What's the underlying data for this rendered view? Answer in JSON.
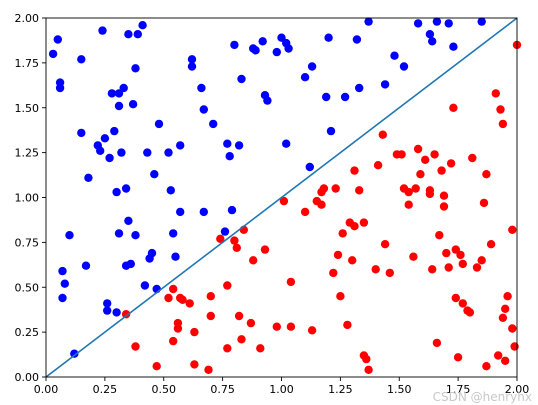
{
  "chart_data": {
    "type": "scatter",
    "title": "",
    "xlabel": "",
    "ylabel": "",
    "xlim": [
      0,
      2
    ],
    "ylim": [
      0,
      2
    ],
    "grid": false,
    "legend": "none",
    "x_ticks": [
      "0.00",
      "0.25",
      "0.50",
      "0.75",
      "1.00",
      "1.25",
      "1.50",
      "1.75",
      "2.00"
    ],
    "y_ticks": [
      "0.00",
      "0.25",
      "0.50",
      "0.75",
      "1.00",
      "1.25",
      "1.50",
      "1.75",
      "2.00"
    ],
    "line": {
      "x": [
        0,
        2
      ],
      "y": [
        0,
        2
      ],
      "color": "#1f77b4"
    },
    "series": [
      {
        "color": "#0000ff",
        "points": [
          [
            0.03,
            1.8
          ],
          [
            0.05,
            1.88
          ],
          [
            0.06,
            1.64
          ],
          [
            0.06,
            1.61
          ],
          [
            0.07,
            0.59
          ],
          [
            0.07,
            0.44
          ],
          [
            0.08,
            0.52
          ],
          [
            0.1,
            0.79
          ],
          [
            0.12,
            0.13
          ],
          [
            0.15,
            1.77
          ],
          [
            0.15,
            1.36
          ],
          [
            0.17,
            0.62
          ],
          [
            0.18,
            1.11
          ],
          [
            0.22,
            1.29
          ],
          [
            0.23,
            1.26
          ],
          [
            0.24,
            1.93
          ],
          [
            0.25,
            1.33
          ],
          [
            0.26,
            0.37
          ],
          [
            0.26,
            0.41
          ],
          [
            0.27,
            1.22
          ],
          [
            0.28,
            1.58
          ],
          [
            0.29,
            1.37
          ],
          [
            0.3,
            0.36
          ],
          [
            0.3,
            1.03
          ],
          [
            0.31,
            0.8
          ],
          [
            0.31,
            1.58
          ],
          [
            0.31,
            1.51
          ],
          [
            0.32,
            1.25
          ],
          [
            0.33,
            1.61
          ],
          [
            0.34,
            1.05
          ],
          [
            0.34,
            0.62
          ],
          [
            0.35,
            0.87
          ],
          [
            0.35,
            1.91
          ],
          [
            0.36,
            0.63
          ],
          [
            0.37,
            1.52
          ],
          [
            0.38,
            0.79
          ],
          [
            0.38,
            1.72
          ],
          [
            0.39,
            1.91
          ],
          [
            0.41,
            1.96
          ],
          [
            0.42,
            0.51
          ],
          [
            0.43,
            1.25
          ],
          [
            0.44,
            0.66
          ],
          [
            0.45,
            0.69
          ],
          [
            0.46,
            1.13
          ],
          [
            0.47,
            0.49
          ],
          [
            0.48,
            1.41
          ],
          [
            0.52,
            1.25
          ],
          [
            0.53,
            1.04
          ],
          [
            0.54,
            0.8
          ],
          [
            0.55,
            0.67
          ],
          [
            0.57,
            1.29
          ],
          [
            0.57,
            0.92
          ],
          [
            0.62,
            1.77
          ],
          [
            0.62,
            1.73
          ],
          [
            0.66,
            1.61
          ],
          [
            0.67,
            0.92
          ],
          [
            0.67,
            1.49
          ],
          [
            0.71,
            1.41
          ],
          [
            0.76,
            0.81
          ],
          [
            0.77,
            1.3
          ],
          [
            0.78,
            1.23
          ],
          [
            0.79,
            0.93
          ],
          [
            0.8,
            1.85
          ],
          [
            0.82,
            1.29
          ],
          [
            0.83,
            1.66
          ],
          [
            0.88,
            1.83
          ],
          [
            0.89,
            1.82
          ],
          [
            0.92,
            1.87
          ],
          [
            0.93,
            1.57
          ],
          [
            0.94,
            1.54
          ],
          [
            0.98,
            1.81
          ],
          [
            1.0,
            1.89
          ],
          [
            1.02,
            1.86
          ],
          [
            1.02,
            1.3
          ],
          [
            1.03,
            1.83
          ],
          [
            1.1,
            1.67
          ],
          [
            1.12,
            1.17
          ],
          [
            1.13,
            1.73
          ],
          [
            1.19,
            1.56
          ],
          [
            1.2,
            1.89
          ],
          [
            1.21,
            1.37
          ],
          [
            1.27,
            1.56
          ],
          [
            1.32,
            1.88
          ],
          [
            1.33,
            1.61
          ],
          [
            1.37,
            1.98
          ],
          [
            1.44,
            1.63
          ],
          [
            1.48,
            1.79
          ],
          [
            1.52,
            1.73
          ],
          [
            1.58,
            1.97
          ],
          [
            1.63,
            1.91
          ],
          [
            1.64,
            1.87
          ],
          [
            1.66,
            1.98
          ],
          [
            1.71,
            1.97
          ],
          [
            1.73,
            1.84
          ],
          [
            1.85,
            1.98
          ]
        ]
      },
      {
        "color": "#ff0000",
        "points": [
          [
            0.34,
            0.35
          ],
          [
            0.38,
            0.17
          ],
          [
            0.47,
            0.06
          ],
          [
            0.52,
            0.44
          ],
          [
            0.54,
            0.49
          ],
          [
            0.54,
            0.2
          ],
          [
            0.56,
            0.27
          ],
          [
            0.56,
            0.3
          ],
          [
            0.57,
            0.44
          ],
          [
            0.58,
            0.43
          ],
          [
            0.61,
            0.41
          ],
          [
            0.63,
            0.25
          ],
          [
            0.63,
            0.07
          ],
          [
            0.69,
            0.04
          ],
          [
            0.7,
            0.45
          ],
          [
            0.7,
            0.34
          ],
          [
            0.74,
            0.77
          ],
          [
            0.77,
            0.51
          ],
          [
            0.77,
            0.16
          ],
          [
            0.8,
            0.76
          ],
          [
            0.81,
            0.72
          ],
          [
            0.82,
            0.34
          ],
          [
            0.83,
            0.21
          ],
          [
            0.84,
            0.82
          ],
          [
            0.87,
            0.3
          ],
          [
            0.88,
            0.65
          ],
          [
            0.91,
            0.16
          ],
          [
            0.93,
            0.71
          ],
          [
            0.98,
            0.28
          ],
          [
            1.01,
            0.98
          ],
          [
            1.04,
            0.28
          ],
          [
            1.04,
            0.53
          ],
          [
            1.1,
            0.92
          ],
          [
            1.13,
            0.26
          ],
          [
            1.15,
            0.98
          ],
          [
            1.17,
            0.96
          ],
          [
            1.17,
            1.03
          ],
          [
            1.18,
            1.05
          ],
          [
            1.22,
            0.58
          ],
          [
            1.23,
            1.05
          ],
          [
            1.24,
            0.68
          ],
          [
            1.25,
            0.45
          ],
          [
            1.26,
            0.8
          ],
          [
            1.28,
            0.29
          ],
          [
            1.29,
            0.86
          ],
          [
            1.3,
            0.65
          ],
          [
            1.31,
            1.15
          ],
          [
            1.31,
            0.84
          ],
          [
            1.33,
            1.04
          ],
          [
            1.35,
            0.86
          ],
          [
            1.35,
            0.12
          ],
          [
            1.36,
            0.1
          ],
          [
            1.37,
            0.04
          ],
          [
            1.4,
            0.6
          ],
          [
            1.41,
            1.18
          ],
          [
            1.43,
            1.35
          ],
          [
            1.44,
            0.74
          ],
          [
            1.46,
            0.58
          ],
          [
            1.49,
            1.24
          ],
          [
            1.51,
            1.24
          ],
          [
            1.52,
            1.05
          ],
          [
            1.54,
            0.96
          ],
          [
            1.54,
            1.03
          ],
          [
            1.56,
            0.67
          ],
          [
            1.57,
            1.05
          ],
          [
            1.58,
            1.27
          ],
          [
            1.59,
            1.13
          ],
          [
            1.61,
            1.21
          ],
          [
            1.63,
            1.04
          ],
          [
            1.63,
            1.02
          ],
          [
            1.64,
            0.6
          ],
          [
            1.65,
            1.24
          ],
          [
            1.66,
            0.19
          ],
          [
            1.67,
            0.79
          ],
          [
            1.68,
            1.15
          ],
          [
            1.69,
            1.01
          ],
          [
            1.69,
            0.95
          ],
          [
            1.7,
            0.69
          ],
          [
            1.71,
            0.61
          ],
          [
            1.72,
            1.19
          ],
          [
            1.73,
            1.5
          ],
          [
            1.74,
            0.71
          ],
          [
            1.74,
            0.44
          ],
          [
            1.75,
            0.11
          ],
          [
            1.76,
            0.68
          ],
          [
            1.77,
            0.41
          ],
          [
            1.77,
            0.63
          ],
          [
            1.79,
            0.37
          ],
          [
            1.8,
            0.36
          ],
          [
            1.81,
            1.22
          ],
          [
            1.83,
            0.61
          ],
          [
            1.85,
            0.65
          ],
          [
            1.86,
            0.97
          ],
          [
            1.87,
            1.13
          ],
          [
            1.89,
            0.74
          ],
          [
            1.91,
            1.58
          ],
          [
            1.93,
            1.49
          ],
          [
            1.94,
            1.41
          ],
          [
            1.95,
            0.38
          ],
          [
            1.96,
            0.45
          ],
          [
            1.98,
            0.27
          ],
          [
            1.99,
            0.17
          ],
          [
            1.92,
            0.12
          ],
          [
            1.95,
            0.09
          ],
          [
            1.87,
            0.06
          ],
          [
            1.94,
            0.33
          ],
          [
            1.98,
            0.82
          ],
          [
            2.0,
            1.85
          ]
        ]
      }
    ]
  },
  "watermark": "CSDN @henryhx"
}
